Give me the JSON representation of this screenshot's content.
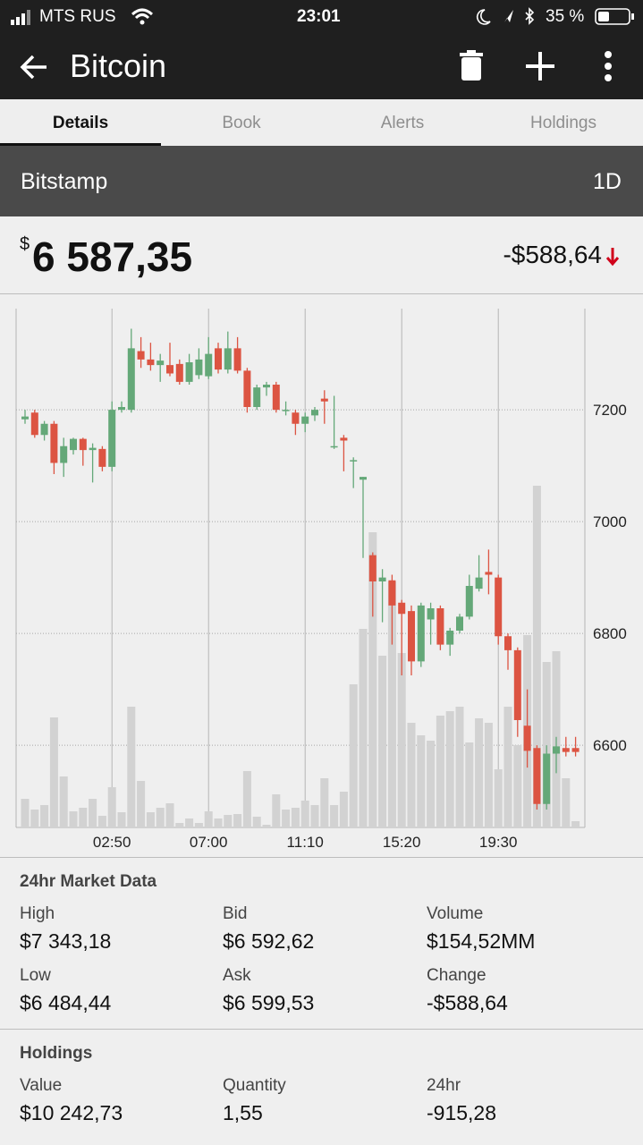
{
  "status_bar": {
    "carrier": "MTS RUS",
    "time": "23:01",
    "battery": "35 %"
  },
  "app_bar": {
    "title": "Bitcoin"
  },
  "tabs": [
    "Details",
    "Book",
    "Alerts",
    "Holdings"
  ],
  "market": {
    "exchange": "Bitstamp",
    "period": "1D"
  },
  "price": {
    "currency": "$",
    "amount": "6 587,35",
    "change": "-$588,64"
  },
  "chart_data": {
    "type": "candlestick",
    "categories": [
      null,
      null,
      null,
      null,
      null,
      null,
      null,
      null,
      null,
      "02:50",
      null,
      null,
      null,
      null,
      null,
      null,
      null,
      null,
      null,
      "07:00",
      null,
      null,
      null,
      null,
      null,
      null,
      null,
      null,
      null,
      "11:10",
      null,
      null,
      null,
      null,
      null,
      null,
      null,
      null,
      null,
      "15:20",
      null,
      null,
      null,
      null,
      null,
      null,
      null,
      null,
      null,
      "19:30",
      null,
      null,
      null,
      null,
      null,
      null,
      null,
      null
    ],
    "open": [
      7183,
      7195,
      7155,
      7175,
      7105,
      7128,
      7148,
      7128,
      7130,
      7098,
      7200,
      7200,
      7305,
      7290,
      7280,
      7280,
      7282,
      7250,
      7262,
      7260,
      7310,
      7272,
      7310,
      7270,
      7205,
      7240,
      7245,
      7198,
      7195,
      7175,
      7190,
      7220,
      7135,
      7150,
      7110,
      7075,
      6940,
      6893,
      6895,
      6855,
      6840,
      6750,
      6825,
      6845,
      6780,
      6805,
      6830,
      6880,
      6910,
      6900,
      6795,
      6770,
      6635,
      6595,
      6495,
      6585,
      6595,
      6595
    ],
    "high": [
      7200,
      7200,
      7180,
      7180,
      7150,
      7150,
      7150,
      7140,
      7135,
      7215,
      7215,
      7345,
      7330,
      7320,
      7300,
      7320,
      7290,
      7300,
      7310,
      7330,
      7320,
      7340,
      7330,
      7275,
      7245,
      7250,
      7250,
      7215,
      7200,
      7195,
      7205,
      7235,
      7225,
      7155,
      7115,
      7080,
      6945,
      6915,
      6905,
      6860,
      6850,
      6855,
      6855,
      6850,
      6810,
      6835,
      6905,
      6940,
      6950,
      6905,
      6800,
      6775,
      6700,
      6600,
      6600,
      6615,
      6615,
      6615
    ],
    "low": [
      7175,
      7150,
      7145,
      7085,
      7080,
      7120,
      7100,
      7070,
      7090,
      7090,
      7195,
      7195,
      7275,
      7270,
      7250,
      7260,
      7245,
      7245,
      7255,
      7255,
      7265,
      7265,
      7265,
      7195,
      7200,
      7225,
      7195,
      7190,
      7155,
      7160,
      7180,
      7175,
      7130,
      7090,
      7060,
      6935,
      6830,
      6820,
      6780,
      6725,
      6725,
      6740,
      6780,
      6770,
      6760,
      6800,
      6825,
      6875,
      6870,
      6780,
      6735,
      6615,
      6560,
      6485,
      6485,
      6550,
      6580,
      6580
    ],
    "close": [
      7188,
      7155,
      7175,
      7105,
      7135,
      7148,
      7128,
      7132,
      7098,
      7200,
      7205,
      7310,
      7290,
      7280,
      7288,
      7265,
      7250,
      7285,
      7290,
      7300,
      7272,
      7310,
      7270,
      7205,
      7240,
      7245,
      7200,
      7200,
      7175,
      7188,
      7200,
      7215,
      7135,
      7145,
      7110,
      7080,
      6893,
      6900,
      6850,
      6835,
      6750,
      6850,
      6845,
      6780,
      6805,
      6830,
      6885,
      6900,
      6905,
      6795,
      6770,
      6645,
      6590,
      6495,
      6585,
      6598,
      6588,
      6588
    ],
    "volume": [
      32,
      20,
      25,
      123,
      57,
      18,
      22,
      32,
      13,
      45,
      17,
      135,
      52,
      17,
      22,
      27,
      5,
      10,
      5,
      18,
      10,
      14,
      15,
      63,
      12,
      3,
      37,
      20,
      22,
      30,
      25,
      55,
      25,
      40,
      160,
      222,
      330,
      192,
      275,
      195,
      117,
      103,
      97,
      125,
      130,
      135,
      95,
      122,
      117,
      65,
      135,
      92,
      215,
      382,
      185,
      197,
      55,
      7
    ],
    "up_color": "#64a878",
    "down_color": "#dc5442",
    "volume_color": "#d2d2d2",
    "ylim": [
      6453,
      7381
    ],
    "yticks": [
      6600,
      6800,
      7000,
      7200
    ],
    "volume_lim": [
      0,
      580
    ],
    "grid": true
  },
  "market_data": {
    "title": "24hr Market Data",
    "items": [
      {
        "label": "High",
        "value": "$7 343,18"
      },
      {
        "label": "Bid",
        "value": "$6 592,62"
      },
      {
        "label": "Volume",
        "value": "$154,52MM"
      },
      {
        "label": "Low",
        "value": "$6 484,44"
      },
      {
        "label": "Ask",
        "value": "$6 599,53"
      },
      {
        "label": "Change",
        "value": "-$588,64"
      }
    ]
  },
  "holdings": {
    "title": "Holdings",
    "items": [
      {
        "label": "Value",
        "value": "$10 242,73"
      },
      {
        "label": "Quantity",
        "value": "1,55"
      },
      {
        "label": "24hr",
        "value": "-915,28"
      }
    ]
  }
}
